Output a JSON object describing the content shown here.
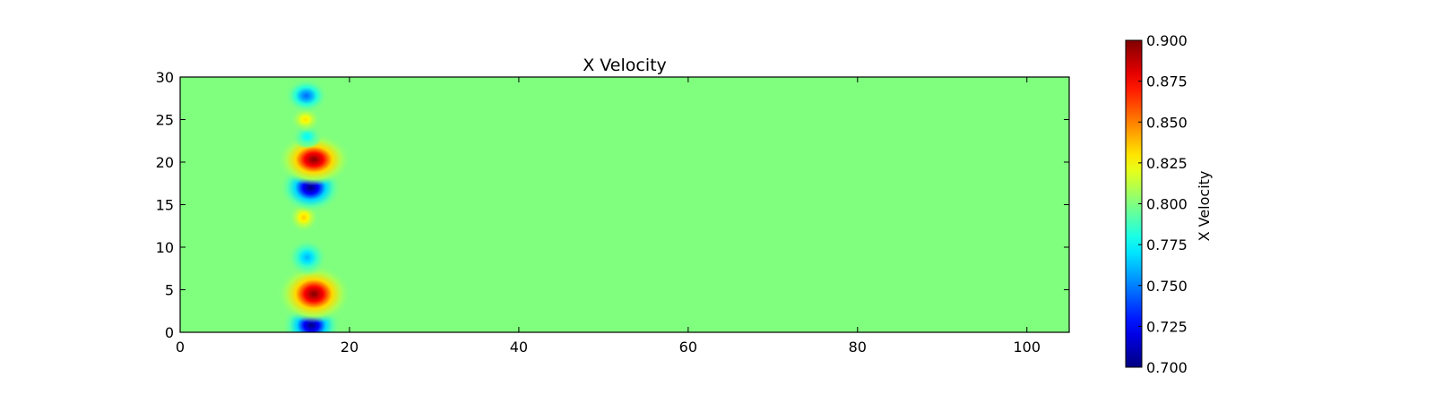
{
  "chart_data": {
    "type": "heatmap",
    "title": "X Velocity",
    "xlabel": "",
    "ylabel": "",
    "xlim": [
      0,
      105
    ],
    "ylim": [
      0,
      30
    ],
    "x_ticks": [
      0,
      20,
      40,
      60,
      80,
      100
    ],
    "y_ticks": [
      0,
      5,
      10,
      15,
      20,
      25,
      30
    ],
    "background_value": 0.8,
    "features": [
      {
        "x": 15.5,
        "y": 0.8,
        "sx": 1.9,
        "sy": 1.5,
        "value": 0.7
      },
      {
        "x": 15.8,
        "y": 4.5,
        "sx": 2.4,
        "sy": 1.9,
        "value": 0.9
      },
      {
        "x": 15.0,
        "y": 8.8,
        "sx": 1.3,
        "sy": 1.2,
        "value": 0.76
      },
      {
        "x": 14.6,
        "y": 13.5,
        "sx": 1.0,
        "sy": 1.0,
        "value": 0.835
      },
      {
        "x": 15.4,
        "y": 17.0,
        "sx": 2.0,
        "sy": 1.6,
        "value": 0.7
      },
      {
        "x": 15.8,
        "y": 20.3,
        "sx": 2.4,
        "sy": 1.7,
        "value": 0.9
      },
      {
        "x": 15.0,
        "y": 23.0,
        "sx": 1.0,
        "sy": 0.8,
        "value": 0.775
      },
      {
        "x": 14.8,
        "y": 25.0,
        "sx": 1.0,
        "sy": 0.8,
        "value": 0.83
      },
      {
        "x": 14.9,
        "y": 27.8,
        "sx": 1.4,
        "sy": 1.1,
        "value": 0.745
      }
    ],
    "colorbar": {
      "label": "X Velocity",
      "min": 0.7,
      "max": 0.9,
      "ticks": [
        "0.700",
        "0.725",
        "0.750",
        "0.775",
        "0.800",
        "0.825",
        "0.850",
        "0.875",
        "0.900"
      ],
      "colormap": "jet"
    }
  }
}
